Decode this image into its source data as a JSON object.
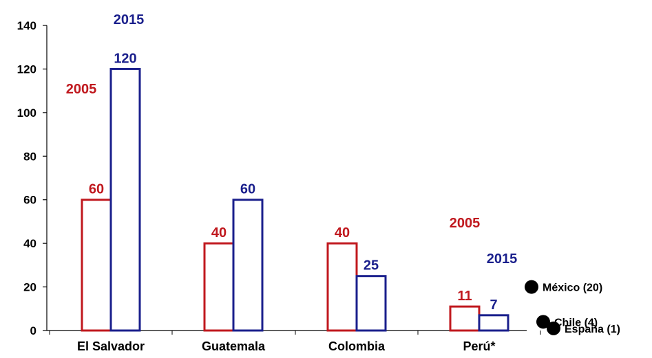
{
  "chart_data": {
    "type": "bar",
    "categories": [
      "El Salvador",
      "Guatemala",
      "Colombia",
      "Perú*"
    ],
    "series": [
      {
        "name": "2005",
        "color": "#c0181e",
        "values": [
          60,
          40,
          40,
          11
        ]
      },
      {
        "name": "2015",
        "color": "#1a1f8c",
        "values": [
          120,
          60,
          25,
          7
        ]
      }
    ],
    "ylim": [
      0,
      140
    ],
    "yticks": [
      0,
      20,
      40,
      60,
      80,
      100,
      120,
      140
    ],
    "grid": false,
    "annotations": {
      "el_salvador_2005": "2005",
      "el_salvador_2015": "2015",
      "peru_2005": "2005",
      "peru_2015": "2015"
    },
    "extra_points": [
      {
        "label": "México (20)",
        "value": 20
      },
      {
        "label": "Chile (4)",
        "value": 4
      },
      {
        "label": "España (1)",
        "value": 1
      }
    ]
  }
}
